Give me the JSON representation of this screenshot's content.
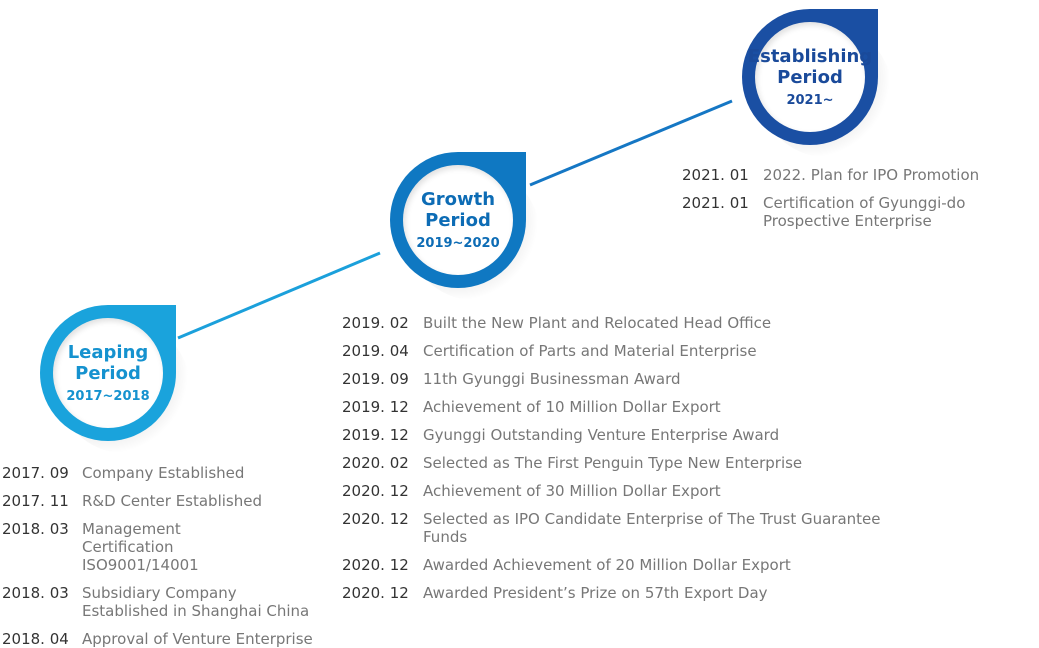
{
  "periods": [
    {
      "id": "leaping",
      "name_line1": "Leaping",
      "name_line2": "Period",
      "years": "2017~2018",
      "color": "#1aa3dc"
    },
    {
      "id": "growth",
      "name_line1": "Growth",
      "name_line2": "Period",
      "years": "2019~2020",
      "color": "#0f78c2"
    },
    {
      "id": "establishing",
      "name_line1": "Establishing",
      "name_line2": "Period",
      "years": "2021~",
      "color": "#1a4fa3"
    }
  ],
  "events": {
    "leaping": [
      {
        "date": "2017. 09",
        "text": "Company Established"
      },
      {
        "date": "2017. 11",
        "text": "R&D Center Established"
      },
      {
        "date": "2018. 03",
        "text": "Management Certification ISO9001/14001"
      },
      {
        "date": "2018. 03",
        "text": "Subsidiary Company Established in Shanghai China"
      },
      {
        "date": "2018. 04",
        "text": "Approval of Venture Enterprise"
      }
    ],
    "growth": [
      {
        "date": "2019. 02",
        "text": "Built the New Plant and Relocated Head Office"
      },
      {
        "date": "2019. 04",
        "text": "Certification of Parts and Material Enterprise"
      },
      {
        "date": "2019. 09",
        "text": "11th Gyunggi Businessman Award"
      },
      {
        "date": "2019. 12",
        "text": "Achievement of 10 Million Dollar Export"
      },
      {
        "date": "2019. 12",
        "text": "Gyunggi Outstanding Venture Enterprise Award"
      },
      {
        "date": "2020. 02",
        "text": "Selected as The First Penguin Type New Enterprise"
      },
      {
        "date": "2020. 12",
        "text": "Achievement of 30 Million Dollar Export"
      },
      {
        "date": "2020. 12",
        "text": "Selected as IPO Candidate Enterprise of The Trust Guarantee Funds"
      },
      {
        "date": "2020. 12",
        "text": "Awarded Achievement of 20 Million Dollar Export"
      },
      {
        "date": "2020. 12",
        "text": "Awarded President’s Prize on 57th Export Day"
      }
    ],
    "establishing": [
      {
        "date": "2021. 01",
        "text": "2022. Plan for IPO Promotion"
      },
      {
        "date": "2021. 01",
        "text": "Certification of Gyunggi-do Prospective Enterprise"
      }
    ]
  },
  "connector_colors": {
    "leaping_to_growth": "#1ba0db",
    "growth_to_establishing": "#1577c4"
  }
}
